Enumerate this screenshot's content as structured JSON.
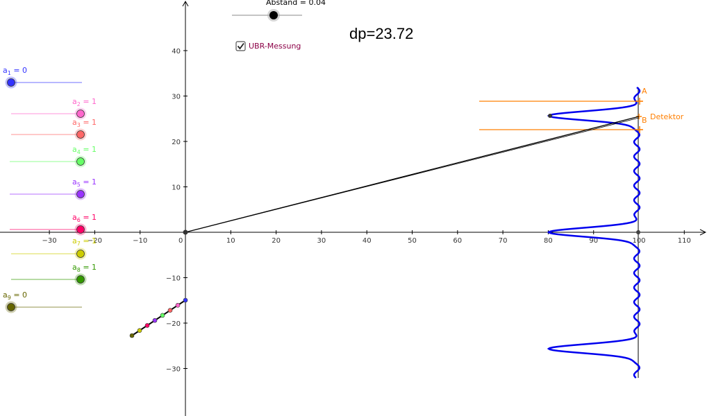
{
  "abstand": {
    "label": "Abstand = 0.04",
    "value": 0.04
  },
  "dp_text": "dp=23.72",
  "checkbox": {
    "label": "UBR-Messung",
    "checked": true
  },
  "detector_label": "Detektor",
  "point_a": "A",
  "point_b": "B",
  "x_ticks": [
    "−30",
    "−20",
    "−10",
    "0",
    "10",
    "20",
    "30",
    "40",
    "50",
    "60",
    "70",
    "80",
    "90",
    "100",
    "110"
  ],
  "y_ticks": [
    "40",
    "30",
    "20",
    "10",
    "−10",
    "−20",
    "−30"
  ],
  "sliders": [
    {
      "name": "a",
      "sub": "1",
      "value": "0",
      "display": " = 0",
      "color": "#3333ff"
    },
    {
      "name": "a",
      "sub": "2",
      "value": "1",
      "display": " = 1",
      "color": "#ff66cc"
    },
    {
      "name": "a",
      "sub": "3",
      "value": "1",
      "display": " = 1",
      "color": "#ff6666"
    },
    {
      "name": "a",
      "sub": "4",
      "value": "1",
      "display": " = 1",
      "color": "#66ff66"
    },
    {
      "name": "a",
      "sub": "5",
      "value": "1",
      "display": " = 1",
      "color": "#9933ff"
    },
    {
      "name": "a",
      "sub": "6",
      "value": "1",
      "display": " = 1",
      "color": "#ff0066"
    },
    {
      "name": "a",
      "sub": "7",
      "value": "1",
      "display": " = 1",
      "color": "#cccc00"
    },
    {
      "name": "a",
      "sub": "8",
      "value": "1",
      "display": " = 1",
      "color": "#339900"
    },
    {
      "name": "a",
      "sub": "9",
      "value": "0",
      "display": " = 0",
      "color": "#666600"
    }
  ],
  "colors": {
    "curve": "#0000ee",
    "orange": "#ff7f00",
    "axis": "#000000"
  }
}
